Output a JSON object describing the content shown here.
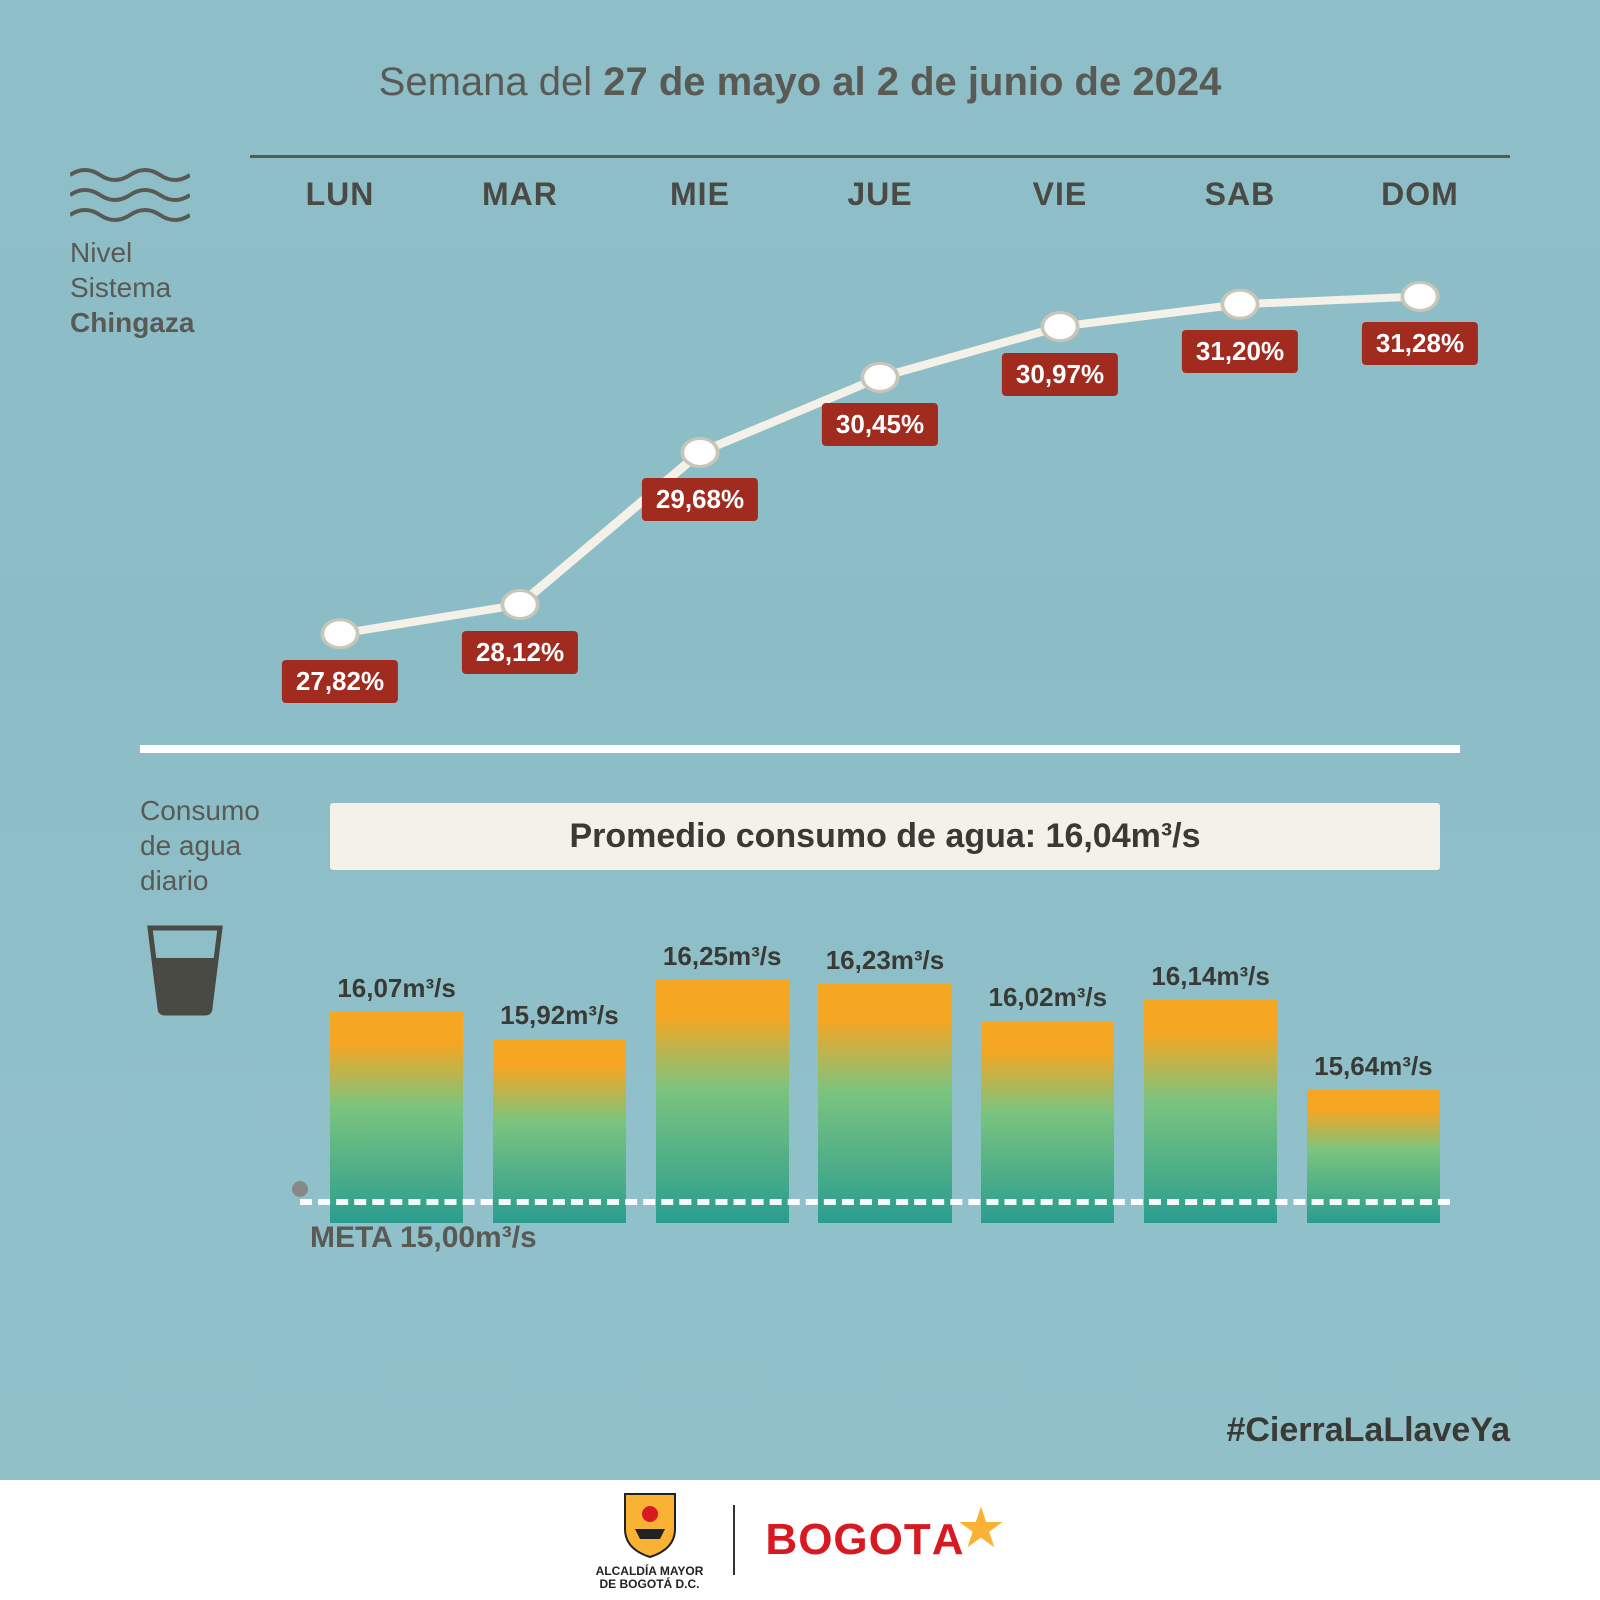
{
  "title_light": "Semana del ",
  "title_bold": "27 de mayo al 2 de junio de 2024",
  "days": [
    "LUN",
    "MAR",
    "MIE",
    "JUE",
    "VIE",
    "SAB",
    "DOM"
  ],
  "side1_line1": "Nivel",
  "side1_line2": "Sistema",
  "side1_line3": "Chingaza",
  "line_chart": {
    "type": "line",
    "values": [
      27.82,
      28.12,
      29.68,
      30.45,
      30.97,
      31.2,
      31.28
    ],
    "labels": [
      "27,82%",
      "28,12%",
      "29,68%",
      "30,45%",
      "30,97%",
      "31,20%",
      "31,28%"
    ],
    "y_min": 27.5,
    "y_max": 31.5,
    "line_color": "#f4f1e8",
    "line_width": 8,
    "marker_fill": "#ffffff",
    "marker_stroke": "#c9c6b8",
    "marker_radius": 14,
    "label_bg": "#a12b1f",
    "label_color": "#ffffff"
  },
  "side2_line1": "Consumo",
  "side2_line2": "de agua",
  "side2_line3": "diario",
  "avg_label": "Promedio consumo de agua: 16,04m³/s",
  "bar_chart": {
    "type": "bar",
    "values": [
      16.07,
      15.92,
      16.25,
      16.23,
      16.02,
      16.14,
      15.64
    ],
    "labels": [
      "16,07m³/s",
      "15,92m³/s",
      "16,25m³/s",
      "16,23m³/s",
      "16,02m³/s",
      "16,14m³/s",
      "15,64m³/s"
    ],
    "y_base": 14.9,
    "y_max": 16.4,
    "meta_value": 15.0,
    "meta_label": "META 15,00m³/s",
    "bar_gradient_top": "#f5a623",
    "bar_gradient_bottom": "#2a9d8f",
    "meta_line_color": "#ffffff"
  },
  "hashtag": "#CierraLaLlaveYa",
  "footer_alcaldia1": "ALCALDÍA MAYOR",
  "footer_alcaldia2": "DE BOGOTÁ D.C.",
  "footer_brand": "BOGOT"
}
